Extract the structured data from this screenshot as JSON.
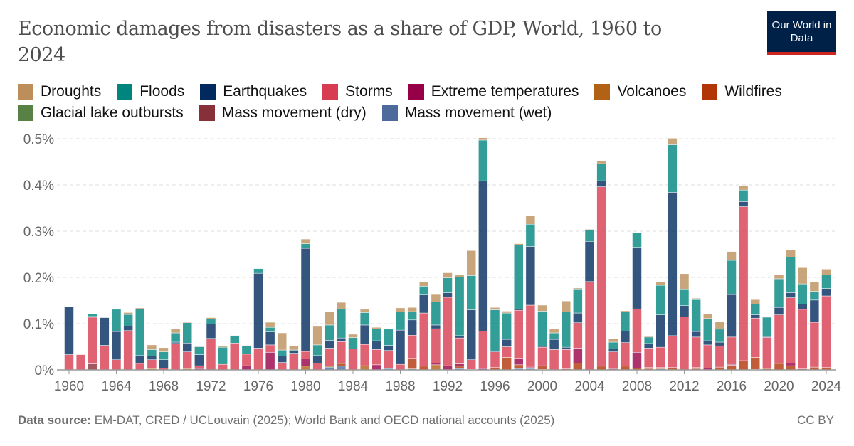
{
  "header": {
    "title": "Economic damages from disasters as a share of GDP, World, 1960 to 2024",
    "logo": "Our World in Data"
  },
  "footer": {
    "source_label": "Data source:",
    "source": "EM-DAT, CRED / UCLouvain (2025); World Bank and OECD national accounts (2025)",
    "license": "CC BY"
  },
  "chart_data": {
    "type": "bar",
    "stacked": true,
    "title": "Economic damages from disasters as a share of GDP, World, 1960 to 2024",
    "xlabel": "",
    "ylabel": "",
    "ylim": [
      0,
      0.5
    ],
    "y_unit": "%",
    "y_ticks": [
      "0%",
      "0.1%",
      "0.2%",
      "0.3%",
      "0.4%",
      "0.5%"
    ],
    "x_ticks": [
      "1960",
      "1964",
      "1968",
      "1972",
      "1976",
      "1980",
      "1984",
      "1988",
      "1992",
      "1996",
      "2000",
      "2004",
      "2008",
      "2012",
      "2016",
      "2020",
      "2024"
    ],
    "grid": "horizontal dashed",
    "legend": "top",
    "categories": [
      1960,
      1961,
      1962,
      1963,
      1964,
      1965,
      1966,
      1967,
      1968,
      1969,
      1970,
      1971,
      1972,
      1973,
      1974,
      1975,
      1976,
      1977,
      1978,
      1979,
      1980,
      1981,
      1982,
      1983,
      1984,
      1985,
      1986,
      1987,
      1988,
      1989,
      1990,
      1991,
      1992,
      1993,
      1994,
      1995,
      1996,
      1997,
      1998,
      1999,
      2000,
      2001,
      2002,
      2003,
      2004,
      2005,
      2006,
      2007,
      2008,
      2009,
      2010,
      2011,
      2012,
      2013,
      2014,
      2015,
      2016,
      2017,
      2018,
      2019,
      2020,
      2021,
      2022,
      2023,
      2024
    ],
    "series": [
      {
        "name": "Droughts",
        "color": "#bc8e5a",
        "values": [
          0,
          0,
          0,
          0,
          0,
          0.004,
          0.002,
          0.01,
          0.009,
          0.009,
          0.002,
          0.002,
          0.003,
          0.003,
          0.001,
          0.001,
          0,
          0.011,
          0.037,
          0.009,
          0.01,
          0.04,
          0.029,
          0.014,
          0.007,
          0.007,
          0.003,
          0,
          0.009,
          0.009,
          0.01,
          0.016,
          0.011,
          0.005,
          0.054,
          0.005,
          0.005,
          0.004,
          0.003,
          0.018,
          0.013,
          0.008,
          0.024,
          0.002,
          0.002,
          0.006,
          0.007,
          0.002,
          0,
          0.003,
          0.007,
          0.014,
          0.033,
          0.003,
          0.01,
          0.017,
          0.019,
          0.01,
          0.01,
          0.001,
          0.009,
          0.016,
          0.035,
          0.02,
          0.013
        ]
      },
      {
        "name": "Floods",
        "color": "#00847e",
        "values": [
          0,
          0,
          0.006,
          0,
          0.048,
          0.025,
          0.101,
          0.014,
          0.017,
          0.02,
          0.044,
          0.017,
          0.011,
          0.037,
          0.016,
          0.018,
          0.01,
          0.01,
          0.013,
          0.002,
          0.01,
          0.023,
          0.033,
          0.063,
          0.025,
          0.027,
          0.026,
          0.035,
          0.039,
          0.018,
          0.019,
          0.05,
          0.032,
          0.127,
          0.074,
          0.088,
          0.089,
          0.057,
          0.138,
          0.048,
          0.076,
          0.014,
          0.076,
          0.052,
          0.024,
          0.037,
          0.015,
          0.042,
          0.032,
          0.014,
          0.064,
          0.103,
          0.036,
          0.069,
          0.048,
          0.028,
          0.074,
          0.025,
          0.023,
          0.042,
          0.062,
          0.077,
          0.044,
          0.019,
          0.029
        ]
      },
      {
        "name": "Earthquakes",
        "color": "#002a5e",
        "values": [
          0.103,
          0,
          0.0015,
          0.06,
          0.061,
          0.01,
          0.017,
          0.008,
          0.018,
          0.003,
          0.019,
          0.024,
          0.031,
          0,
          0,
          0,
          0.162,
          0.028,
          0.014,
          0.005,
          0.223,
          0.016,
          0.017,
          0.008,
          0,
          0.042,
          0.019,
          0.011,
          0.074,
          0.033,
          0.039,
          0.008,
          0.01,
          0.005,
          0.108,
          0.325,
          0.002,
          0.016,
          0.003,
          0.127,
          0.002,
          0.022,
          0.005,
          0.021,
          0.087,
          0.013,
          0.006,
          0.025,
          0.133,
          0.01,
          0.07,
          0.31,
          0.024,
          0.012,
          0.009,
          0.008,
          0.092,
          0.011,
          0.007,
          0.002,
          0.016,
          0.011,
          0.011,
          0.048,
          0.016
        ]
      },
      {
        "name": "Storms",
        "color": "#d73c50",
        "values": [
          0.033,
          0.033,
          0.101,
          0.053,
          0.022,
          0.085,
          0.014,
          0.019,
          0.004,
          0.057,
          0.036,
          0.006,
          0.068,
          0.012,
          0.058,
          0.025,
          0.047,
          0.016,
          0.016,
          0.036,
          0.016,
          0.015,
          0.039,
          0.047,
          0.045,
          0.046,
          0.033,
          0.039,
          0.012,
          0.05,
          0.115,
          0.074,
          0.148,
          0.056,
          0.021,
          0.081,
          0.034,
          0.023,
          0.104,
          0.134,
          0.04,
          0.044,
          0.042,
          0.055,
          0.191,
          0.388,
          0.035,
          0.051,
          0.094,
          0.042,
          0.044,
          0.069,
          0.115,
          0.066,
          0.05,
          0.046,
          0.059,
          0.333,
          0.085,
          0.067,
          0.105,
          0.141,
          0.129,
          0.097,
          0.155
        ]
      },
      {
        "name": "Extreme temperatures",
        "color": "#970046",
        "values": [
          0,
          0,
          0,
          0,
          0,
          0,
          0,
          0,
          0,
          0,
          0,
          0.003,
          0,
          0,
          0,
          0.009,
          0,
          0.038,
          0,
          0,
          0.016,
          0,
          0,
          0,
          0,
          0,
          0.011,
          0,
          0,
          0,
          0,
          0.004,
          0.009,
          0.005,
          0,
          0.003,
          0,
          0,
          0.014,
          0.003,
          0,
          0,
          0,
          0.032,
          0,
          0,
          0.002,
          0,
          0.034,
          0.002,
          0,
          0,
          0,
          0.002,
          0.004,
          0,
          0.002,
          0,
          0,
          0,
          0,
          0.006,
          0,
          0,
          0
        ]
      },
      {
        "name": "Volcanoes",
        "color": "#b16214",
        "values": [
          0,
          0,
          0,
          0,
          0,
          0,
          0,
          0.003,
          0,
          0,
          0.003,
          0,
          0,
          0,
          0,
          0,
          0,
          0,
          0,
          0,
          0.008,
          0,
          0.002,
          0,
          0,
          0.009,
          0,
          0,
          0,
          0,
          0,
          0.011,
          0,
          0,
          0,
          0,
          0,
          0,
          0,
          0,
          0,
          0,
          0,
          0,
          0,
          0,
          0,
          0,
          0,
          0,
          0,
          0,
          0,
          0,
          0,
          0,
          0,
          0,
          0,
          0,
          0,
          0,
          0,
          0,
          0
        ]
      },
      {
        "name": "Wildfires",
        "color": "#b13507",
        "values": [
          0,
          0,
          0,
          0,
          0,
          0,
          0,
          0,
          0,
          0,
          0,
          0,
          0,
          0,
          0,
          0,
          0,
          0,
          0,
          0,
          0,
          0,
          0,
          0.006,
          0,
          0,
          0,
          0,
          0,
          0.023,
          0.008,
          0,
          0,
          0.005,
          0.001,
          0,
          0.005,
          0.027,
          0.008,
          0,
          0.008,
          0,
          0.002,
          0.015,
          0,
          0.008,
          0.002,
          0.008,
          0.004,
          0.003,
          0.003,
          0.005,
          0,
          0.003,
          0,
          0.006,
          0.01,
          0.02,
          0.026,
          0.003,
          0.014,
          0.009,
          0.002,
          0.006,
          0.005
        ]
      },
      {
        "name": "Glacial lake outbursts",
        "color": "#578145",
        "values": [
          0,
          0,
          0,
          0,
          0,
          0,
          0,
          0,
          0,
          0,
          0,
          0,
          0,
          0,
          0,
          0,
          0,
          0,
          0,
          0,
          0,
          0,
          0,
          0,
          0,
          0,
          0,
          0,
          0,
          0,
          0,
          0,
          0,
          0,
          0,
          0,
          0,
          0,
          0,
          0,
          0,
          0,
          0,
          0,
          0,
          0,
          0,
          0,
          0,
          0,
          0,
          0,
          0,
          0,
          0,
          0,
          0,
          0,
          0,
          0,
          0,
          0,
          0,
          0,
          0
        ]
      },
      {
        "name": "Mass movement (dry)",
        "color": "#883039",
        "values": [
          0,
          0,
          0.013,
          0,
          0,
          0,
          0,
          0,
          0,
          0,
          0,
          0,
          0,
          0,
          0,
          0,
          0,
          0,
          0,
          0,
          0,
          0,
          0,
          0,
          0,
          0,
          0,
          0,
          0,
          0,
          0,
          0,
          0,
          0,
          0,
          0,
          0,
          0,
          0,
          0,
          0,
          0,
          0,
          0,
          0,
          0,
          0,
          0,
          0,
          0,
          0,
          0,
          0,
          0,
          0,
          0,
          0,
          0,
          0,
          0,
          0,
          0,
          0,
          0,
          0
        ]
      },
      {
        "name": "Mass movement (wet)",
        "color": "#4c6a9c",
        "values": [
          0,
          0,
          0,
          0,
          0,
          0,
          0,
          0,
          0,
          0,
          0,
          0,
          0,
          0,
          0,
          0,
          0,
          0,
          0,
          0,
          0,
          0,
          0.006,
          0.008,
          0,
          0,
          0,
          0.003,
          0,
          0.002,
          0,
          0,
          0,
          0.003,
          0,
          0,
          0,
          0,
          0.003,
          0.003,
          0.001,
          0,
          0,
          0,
          0,
          0,
          0,
          0,
          0,
          0,
          0.002,
          0,
          0,
          0,
          0,
          0,
          0,
          0,
          0.001,
          0,
          0,
          0,
          0,
          0,
          0
        ]
      }
    ]
  }
}
